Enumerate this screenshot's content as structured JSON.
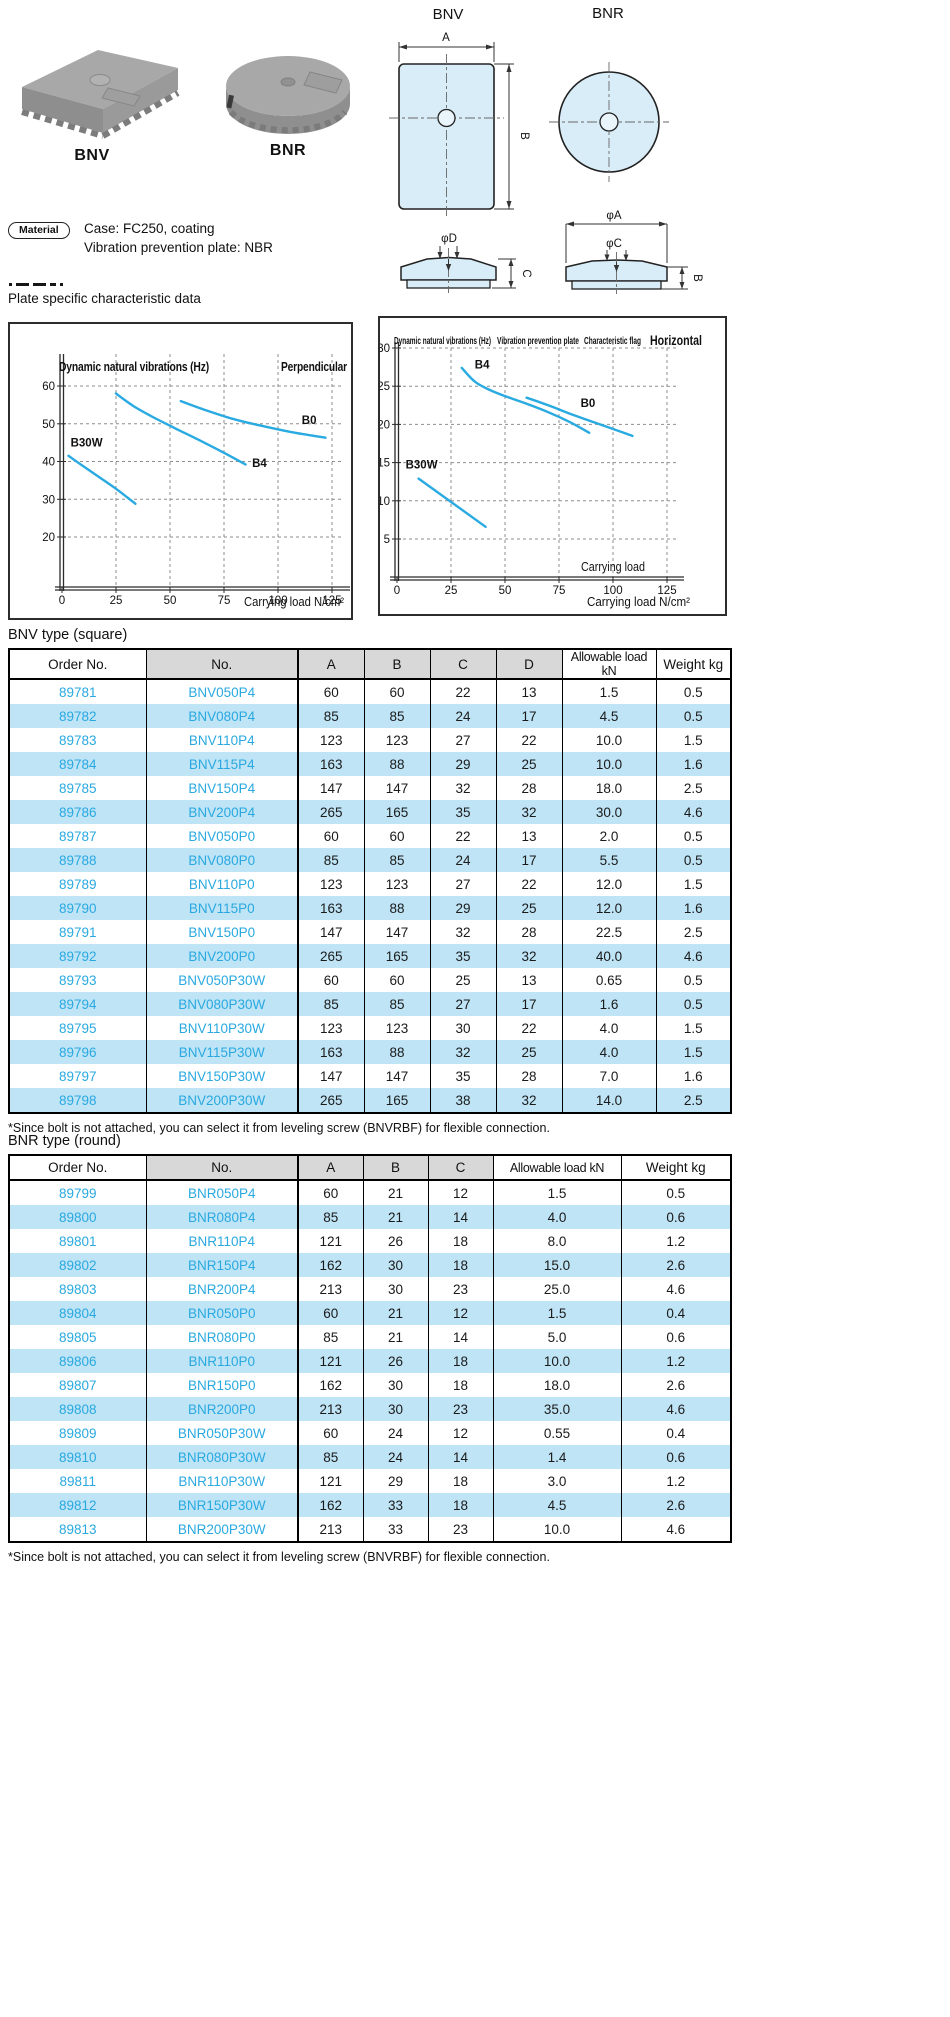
{
  "products": {
    "bnv_label": "BNV",
    "bnr_label": "BNR"
  },
  "drawings": {
    "bnv_title": "BNV",
    "bnr_title": "BNR",
    "dim_a": "A",
    "dim_b": "B",
    "dim_c": "C",
    "dim_phi_d": "φD",
    "dim_phi_c": "φC",
    "dim_phi_a": "φA",
    "dim_b_side": "B"
  },
  "material": {
    "badge_label": "Material",
    "case_line": "Case: FC250, coating",
    "plate_line": "Vibration prevention plate: NBR"
  },
  "section_title": "Plate specific characteristic data",
  "chart_data": [
    {
      "type": "line",
      "title": "Dynamic natural vibrations (Hz)",
      "annotation": "Perpendicular",
      "xlabel": "Carrying load N/cm²",
      "ylabel": "Dynamic natural vibrations (Hz)",
      "xlim": [
        0,
        130
      ],
      "ylim": [
        6.5,
        68.5
      ],
      "xticks": [
        0,
        25,
        50,
        75,
        100,
        125
      ],
      "yticks": [
        20,
        30,
        40,
        50,
        60
      ],
      "grid": true,
      "legend_position": "inline-labels",
      "series": [
        {
          "name": "B30W",
          "points": [
            [
              3,
              41.5
            ],
            [
              13,
              37.5
            ],
            [
              24,
              33.2
            ],
            [
              34,
              28.8
            ]
          ],
          "label_at": [
            4,
            44
          ]
        },
        {
          "name": "B4",
          "points": [
            [
              25,
              58
            ],
            [
              33,
              54.7
            ],
            [
              42,
              51.8
            ],
            [
              52,
              48.9
            ],
            [
              63,
              45.8
            ],
            [
              74,
              42.6
            ],
            [
              85,
              39.2
            ]
          ],
          "label_at": [
            88,
            38.6
          ]
        },
        {
          "name": "B0",
          "points": [
            [
              55,
              56
            ],
            [
              67,
              53.5
            ],
            [
              79,
              51.3
            ],
            [
              92,
              49.5
            ],
            [
              106,
              47.8
            ],
            [
              122,
              46.3
            ]
          ],
          "label_at": [
            111,
            50
          ]
        }
      ]
    },
    {
      "type": "line",
      "title": "Dynamic natural vibrations (Hz)",
      "legend_headers": [
        "Vibration prevention plate",
        "Characteristic flag"
      ],
      "annotation": "Horizontal",
      "xlabel": "Carrying load N/cm²",
      "inner_label": "Carrying load",
      "ylabel": "Dynamic natural vibrations (Hz)",
      "xlim": [
        0,
        130
      ],
      "ylim": [
        0,
        30.8
      ],
      "xticks": [
        0,
        25,
        50,
        75,
        100,
        125
      ],
      "yticks": [
        5,
        10,
        15,
        20,
        25,
        30
      ],
      "grid": true,
      "legend_position": "inline-labels",
      "series": [
        {
          "name": "B4",
          "points": [
            [
              30,
              27.4
            ],
            [
              36,
              25.6
            ],
            [
              43,
              24.5
            ],
            [
              51,
              23.6
            ],
            [
              60,
              22.7
            ],
            [
              70,
              21.6
            ],
            [
              80,
              20.3
            ],
            [
              89,
              18.9
            ]
          ],
          "label_at": [
            36,
            27.3
          ]
        },
        {
          "name": "B0",
          "points": [
            [
              60,
              23.5
            ],
            [
              70,
              22.5
            ],
            [
              81,
              21.3
            ],
            [
              92,
              20.2
            ],
            [
              101,
              19.3
            ],
            [
              109,
              18.5
            ]
          ],
          "label_at": [
            85,
            22.3
          ]
        },
        {
          "name": "B30W",
          "points": [
            [
              10,
              12.9
            ],
            [
              41,
              6.6
            ]
          ],
          "label_at": [
            4,
            14.2
          ]
        }
      ]
    }
  ],
  "bnv_table": {
    "title": "BNV type (square)",
    "headers": [
      "Order No.",
      "No.",
      "A",
      "B",
      "C",
      "D",
      "Allowable load kN",
      "Weight kg"
    ],
    "rows": [
      [
        "89781",
        "BNV050P4",
        "60",
        "60",
        "22",
        "13",
        "1.5",
        "0.5"
      ],
      [
        "89782",
        "BNV080P4",
        "85",
        "85",
        "24",
        "17",
        "4.5",
        "0.5"
      ],
      [
        "89783",
        "BNV110P4",
        "123",
        "123",
        "27",
        "22",
        "10.0",
        "1.5"
      ],
      [
        "89784",
        "BNV115P4",
        "163",
        "88",
        "29",
        "25",
        "10.0",
        "1.6"
      ],
      [
        "89785",
        "BNV150P4",
        "147",
        "147",
        "32",
        "28",
        "18.0",
        "2.5"
      ],
      [
        "89786",
        "BNV200P4",
        "265",
        "165",
        "35",
        "32",
        "30.0",
        "4.6"
      ],
      [
        "89787",
        "BNV050P0",
        "60",
        "60",
        "22",
        "13",
        "2.0",
        "0.5"
      ],
      [
        "89788",
        "BNV080P0",
        "85",
        "85",
        "24",
        "17",
        "5.5",
        "0.5"
      ],
      [
        "89789",
        "BNV110P0",
        "123",
        "123",
        "27",
        "22",
        "12.0",
        "1.5"
      ],
      [
        "89790",
        "BNV115P0",
        "163",
        "88",
        "29",
        "25",
        "12.0",
        "1.6"
      ],
      [
        "89791",
        "BNV150P0",
        "147",
        "147",
        "32",
        "28",
        "22.5",
        "2.5"
      ],
      [
        "89792",
        "BNV200P0",
        "265",
        "165",
        "35",
        "32",
        "40.0",
        "4.6"
      ],
      [
        "89793",
        "BNV050P30W",
        "60",
        "60",
        "25",
        "13",
        "0.65",
        "0.5"
      ],
      [
        "89794",
        "BNV080P30W",
        "85",
        "85",
        "27",
        "17",
        "1.6",
        "0.5"
      ],
      [
        "89795",
        "BNV110P30W",
        "123",
        "123",
        "30",
        "22",
        "4.0",
        "1.5"
      ],
      [
        "89796",
        "BNV115P30W",
        "163",
        "88",
        "32",
        "25",
        "4.0",
        "1.5"
      ],
      [
        "89797",
        "BNV150P30W",
        "147",
        "147",
        "35",
        "28",
        "7.0",
        "1.6"
      ],
      [
        "89798",
        "BNV200P30W",
        "265",
        "165",
        "38",
        "32",
        "14.0",
        "2.5"
      ]
    ],
    "footnote": "*Since bolt is not attached, you can select it from leveling screw (BNVRBF) for flexible connection."
  },
  "bnr_table": {
    "title": "BNR type (round)",
    "headers": [
      "Order No.",
      "No.",
      "A",
      "B",
      "C",
      "Allowable load kN",
      "Weight kg"
    ],
    "rows": [
      [
        "89799",
        "BNR050P4",
        "60",
        "21",
        "12",
        "1.5",
        "0.5"
      ],
      [
        "89800",
        "BNR080P4",
        "85",
        "21",
        "14",
        "4.0",
        "0.6"
      ],
      [
        "89801",
        "BNR110P4",
        "121",
        "26",
        "18",
        "8.0",
        "1.2"
      ],
      [
        "89802",
        "BNR150P4",
        "162",
        "30",
        "18",
        "15.0",
        "2.6"
      ],
      [
        "89803",
        "BNR200P4",
        "213",
        "30",
        "23",
        "25.0",
        "4.6"
      ],
      [
        "89804",
        "BNR050P0",
        "60",
        "21",
        "12",
        "1.5",
        "0.4"
      ],
      [
        "89805",
        "BNR080P0",
        "85",
        "21",
        "14",
        "5.0",
        "0.6"
      ],
      [
        "89806",
        "BNR110P0",
        "121",
        "26",
        "18",
        "10.0",
        "1.2"
      ],
      [
        "89807",
        "BNR150P0",
        "162",
        "30",
        "18",
        "18.0",
        "2.6"
      ],
      [
        "89808",
        "BNR200P0",
        "213",
        "30",
        "23",
        "35.0",
        "4.6"
      ],
      [
        "89809",
        "BNR050P30W",
        "60",
        "24",
        "12",
        "0.55",
        "0.4"
      ],
      [
        "89810",
        "BNR080P30W",
        "85",
        "24",
        "14",
        "1.4",
        "0.6"
      ],
      [
        "89811",
        "BNR110P30W",
        "121",
        "29",
        "18",
        "3.0",
        "1.2"
      ],
      [
        "89812",
        "BNR150P30W",
        "162",
        "33",
        "18",
        "4.5",
        "2.6"
      ],
      [
        "89813",
        "BNR200P30W",
        "213",
        "33",
        "23",
        "10.0",
        "4.6"
      ]
    ],
    "footnote": "*Since bolt is not attached, you can select it from leveling screw (BNVRBF) for flexible connection."
  }
}
